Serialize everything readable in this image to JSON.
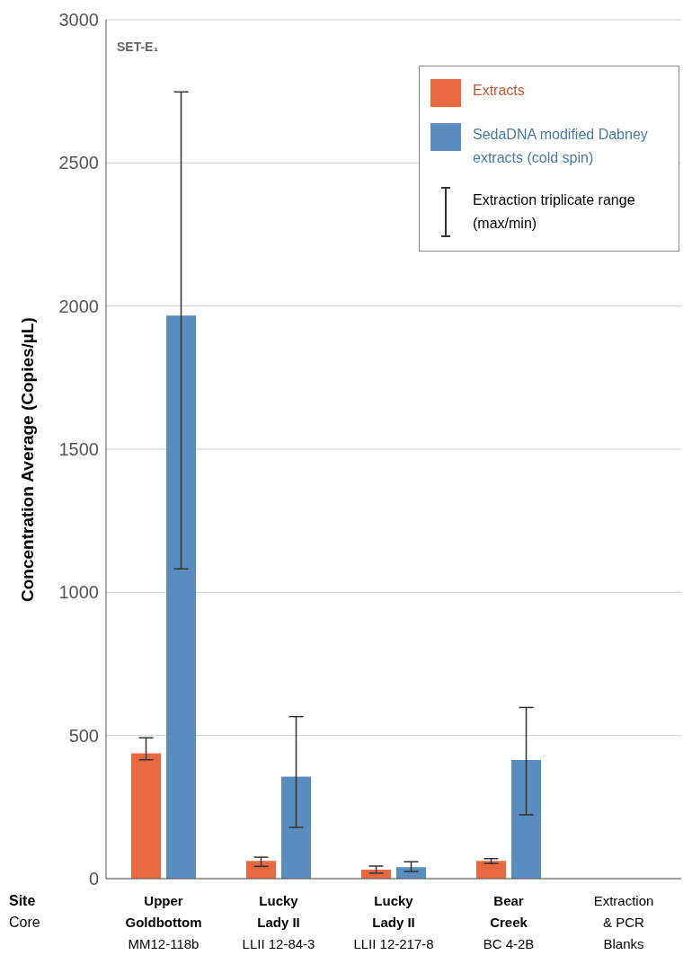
{
  "chart_data": {
    "type": "bar",
    "ylabel": "Concentration Average (Copies/µL)",
    "categories": [
      "Upper\nGoldbottom\n\nMM12-118b",
      "Lucky\nLady II\n\nLLII 12-84-3",
      "Lucky\nLady II\n\nLLII 12-217-8",
      "Bear\nCreek\n\nBC 4-2B",
      "Extraction\n& PCR\nBlanks"
    ],
    "series": [
      {
        "name": "Extracts",
        "color": "#e8693f",
        "values": [
          438,
          62,
          31,
          62,
          0
        ],
        "errors": [
          [
            415,
            492
          ],
          [
            43,
            75
          ],
          [
            19,
            44
          ],
          [
            53,
            70
          ],
          null
        ]
      },
      {
        "name": "SedaDNA modified Dabney extracts (cold spin)",
        "color": "#5a8dbd",
        "values": [
          1967,
          356,
          40,
          414,
          0
        ],
        "errors": [
          [
            1082,
            2748
          ],
          [
            179,
            566
          ],
          [
            25,
            59
          ],
          [
            223,
            598
          ],
          null
        ]
      }
    ],
    "ylim": [
      0,
      3000
    ],
    "yticks": [
      0,
      500,
      1000,
      1500,
      2000,
      2500,
      3000
    ],
    "grid": "y",
    "legend": "top right",
    "annotations": [
      "SET-E₁",
      "Site",
      "Core",
      "Extraction triplicate range (max/min)"
    ]
  }
}
